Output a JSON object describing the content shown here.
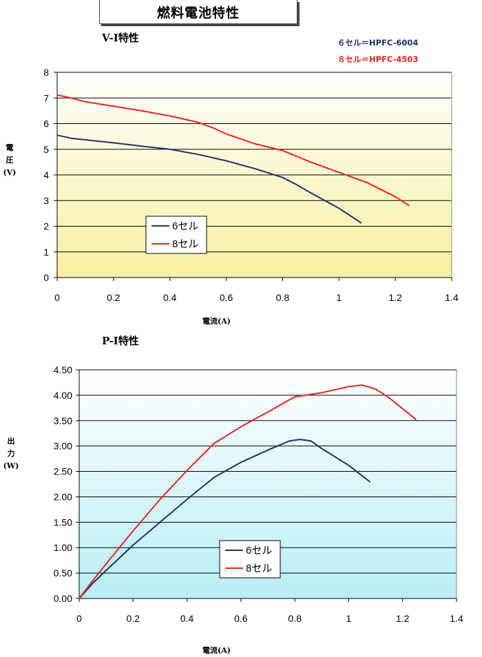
{
  "page": {
    "title": "燃料電池特性",
    "notes": [
      "６セル＝HPFC-6004",
      "８セル＝HPFC-4503"
    ]
  },
  "colors": {
    "series1": "#1f2f6e",
    "series2": "#e8221a"
  },
  "chart_data": [
    {
      "type": "line",
      "title": "V-I特性",
      "xlabel": "電流(A)",
      "ylabel": [
        "電",
        "圧",
        "(V)"
      ],
      "xlim": [
        0,
        1.4
      ],
      "ylim": [
        0,
        8
      ],
      "xticks": [
        0,
        0.2,
        0.4,
        0.6,
        0.8,
        1,
        1.2,
        1.4
      ],
      "yticks": [
        0,
        1,
        2,
        3,
        4,
        5,
        6,
        7,
        8
      ],
      "xtick_labels": [
        "0",
        "0.2",
        "0.4",
        "0.6",
        "0.8",
        "1",
        "1.2",
        "1.4"
      ],
      "ytick_labels": [
        "0",
        "1",
        "2",
        "3",
        "4",
        "5",
        "6",
        "7",
        "8"
      ],
      "grid": "horizontal",
      "legend": "lower-left",
      "series": [
        {
          "name": "6セル",
          "x": [
            0,
            0.05,
            0.1,
            0.2,
            0.3,
            0.4,
            0.5,
            0.6,
            0.7,
            0.8,
            0.85,
            0.9,
            1.0,
            1.08
          ],
          "y": [
            5.55,
            5.43,
            5.37,
            5.25,
            5.12,
            5.0,
            4.8,
            4.55,
            4.25,
            3.9,
            3.62,
            3.3,
            2.7,
            2.12
          ]
        },
        {
          "name": "8セル",
          "x": [
            0,
            0.05,
            0.1,
            0.2,
            0.3,
            0.4,
            0.5,
            0.55,
            0.6,
            0.7,
            0.8,
            0.9,
            1.0,
            1.1,
            1.2,
            1.25
          ],
          "y": [
            7.12,
            7.0,
            6.85,
            6.68,
            6.5,
            6.3,
            6.05,
            5.85,
            5.6,
            5.22,
            4.95,
            4.5,
            4.1,
            3.7,
            3.15,
            2.8
          ]
        }
      ]
    },
    {
      "type": "line",
      "title": "P-I特性",
      "xlabel": "電流(A)",
      "ylabel": [
        "出",
        "力",
        "(W)"
      ],
      "xlim": [
        0,
        1.4
      ],
      "ylim": [
        0,
        4.5
      ],
      "xticks": [
        0,
        0.2,
        0.4,
        0.6,
        0.8,
        1,
        1.2,
        1.4
      ],
      "yticks": [
        0,
        0.5,
        1,
        1.5,
        2,
        2.5,
        3,
        3.5,
        4,
        4.5
      ],
      "xtick_labels": [
        "0",
        "0.2",
        "0.4",
        "0.6",
        "0.8",
        "1",
        "1.2",
        "1.4"
      ],
      "ytick_labels": [
        "0.00",
        "0.50",
        "1.00",
        "1.50",
        "2.00",
        "2.50",
        "3.00",
        "3.50",
        "4.00",
        "4.50"
      ],
      "grid": "horizontal",
      "legend": "lower-center",
      "series": [
        {
          "name": "6セル",
          "x": [
            0,
            0.05,
            0.1,
            0.2,
            0.3,
            0.4,
            0.5,
            0.6,
            0.7,
            0.78,
            0.82,
            0.86,
            0.9,
            1.0,
            1.08
          ],
          "y": [
            0,
            0.3,
            0.55,
            1.05,
            1.5,
            1.95,
            2.38,
            2.68,
            2.92,
            3.1,
            3.13,
            3.1,
            2.95,
            2.62,
            2.29
          ]
        },
        {
          "name": "8セル",
          "x": [
            0,
            0.05,
            0.1,
            0.2,
            0.3,
            0.4,
            0.5,
            0.6,
            0.7,
            0.8,
            0.9,
            1.0,
            1.05,
            1.1,
            1.15,
            1.25
          ],
          "y": [
            0,
            0.35,
            0.68,
            1.33,
            1.95,
            2.52,
            3.05,
            3.38,
            3.67,
            3.97,
            4.05,
            4.17,
            4.2,
            4.12,
            3.95,
            3.52
          ]
        }
      ]
    }
  ]
}
